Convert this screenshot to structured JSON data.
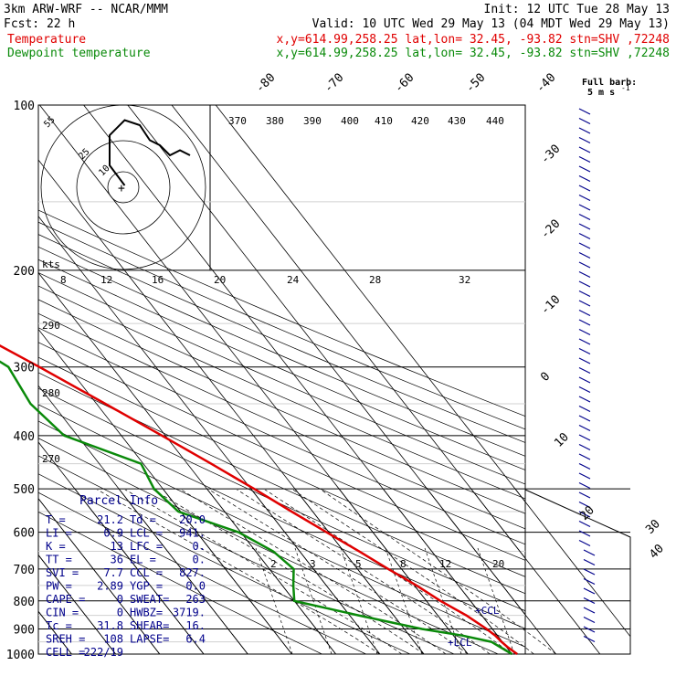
{
  "header": {
    "model": "3km ARW-WRF -- NCAR/MMM",
    "init": "Init: 12 UTC Tue 28 May 13",
    "fcst": "Fcst:    22 h",
    "valid": "Valid: 10 UTC Wed 29 May 13 (04 MDT Wed 29 May 13)",
    "temp_label": "Temperature",
    "temp_info": "x,y=614.99,258.25   lat,lon= 32.45, -93.82  stn=SHV ,72248",
    "dew_label": "Dewpoint temperature",
    "dew_info": "x,y=614.99,258.25   lat,lon= 32.45, -93.82  stn=SHV ,72248"
  },
  "colors": {
    "temperature": "#e00000",
    "dewpoint": "#0a8a0a",
    "wind": "#00008b",
    "panel_text": "#00008b"
  },
  "wind_legend": {
    "line1": "Full barb:",
    "line2": "5 m s",
    "sup": "-1"
  },
  "hodograph": {
    "kts_label": "kts",
    "ring_labels": [
      "10",
      "25",
      "55"
    ]
  },
  "parcel": {
    "title": "Parcel Info",
    "rows": [
      [
        "T  =",
        "21.2",
        "Td =",
        "20.0"
      ],
      [
        "LI =",
        "0.9",
        "LCL =",
        "941."
      ],
      [
        "K  =",
        "13",
        "LFC =",
        "0."
      ],
      [
        "TT =",
        "36",
        "EL  =",
        "0."
      ],
      [
        "SVI =",
        "7.7",
        "CCL =",
        "827."
      ],
      [
        "PW =",
        "2.89",
        "YGP =",
        "0.0"
      ],
      [
        "CAPE =",
        "0",
        "SWEAT=",
        "263"
      ],
      [
        "CIN =",
        "0",
        "HWBZ=",
        "3719."
      ],
      [
        "Tc =",
        "31.8",
        "SHEAR=",
        "16."
      ],
      [
        "SREH =",
        "108",
        "LAPSE=",
        "6.4"
      ],
      [
        "CELL =",
        "222/19"
      ]
    ]
  },
  "markers": {
    "ccl": "+CCL",
    "lcl": "+LCL"
  },
  "chart_data": {
    "type": "line",
    "title": "",
    "xlabel": "",
    "ylabel": "",
    "pressure_levels": [
      "100",
      "200",
      "300",
      "400",
      "500",
      "600",
      "700",
      "800",
      "900",
      "1000"
    ],
    "skewed_temperature_labels": [
      "-80",
      "-70",
      "-60",
      "-50",
      "-40",
      "-30",
      "-20",
      "-10",
      "0",
      "10",
      "20",
      "30",
      "40"
    ],
    "theta_labels": [
      "370",
      "380",
      "390",
      "400",
      "410",
      "420",
      "430",
      "440",
      "290",
      "280",
      "270"
    ],
    "mixing_ratio_labels": [
      "2",
      "3",
      "5",
      "8",
      "12",
      "20"
    ],
    "hodograph_speed_labels": [
      "8",
      "12",
      "16",
      "20",
      "24",
      "28",
      "32"
    ],
    "ylim": [
      1000,
      100
    ],
    "y_scale": "log",
    "series": [
      {
        "name": "Temperature",
        "p": [
          1000,
          970,
          950,
          925,
          900,
          850,
          800,
          750,
          700,
          650,
          600,
          550,
          500,
          450,
          400,
          350,
          300,
          250,
          225,
          200,
          180,
          170,
          160,
          150,
          140,
          130,
          120,
          100
        ],
        "t": [
          21.2,
          20.2,
          19.8,
          19.5,
          18.7,
          16.5,
          13.2,
          10.5,
          7.0,
          3.5,
          -0.5,
          -4.8,
          -9.3,
          -14.6,
          -20.8,
          -28.0,
          -36.5,
          -47.0,
          -53.0,
          -58.0,
          -62.5,
          -64.0,
          -66.5,
          -65.0,
          -63.5,
          -62.5,
          -62.0,
          -60.0
        ]
      },
      {
        "name": "Dewpoint temperature",
        "p": [
          1000,
          970,
          950,
          925,
          900,
          850,
          800,
          750,
          700,
          650,
          600,
          550,
          500,
          450,
          400,
          350,
          300,
          250,
          225,
          200,
          180,
          170,
          160,
          150,
          140,
          130,
          120,
          100
        ],
        "t": [
          20.0,
          18.5,
          17.5,
          12.0,
          4.0,
          -8.0,
          -20.0,
          -17.5,
          -14.5,
          -16.0,
          -20.5,
          -30.5,
          -32.0,
          -30.5,
          -43.0,
          -45.0,
          -43.5,
          -51.5,
          -57.0,
          -67.5,
          -69.0,
          -67.0,
          -68.5,
          -72.0,
          -73.5,
          -75.5,
          -76.0,
          -72.0
        ]
      }
    ],
    "hodograph_trace": [
      [
        -3,
        0
      ],
      [
        -6,
        4
      ],
      [
        -6,
        10
      ],
      [
        -3,
        13
      ],
      [
        0,
        12
      ],
      [
        2,
        9
      ],
      [
        4,
        8
      ],
      [
        6,
        6
      ],
      [
        8,
        7
      ],
      [
        10,
        6
      ]
    ]
  }
}
